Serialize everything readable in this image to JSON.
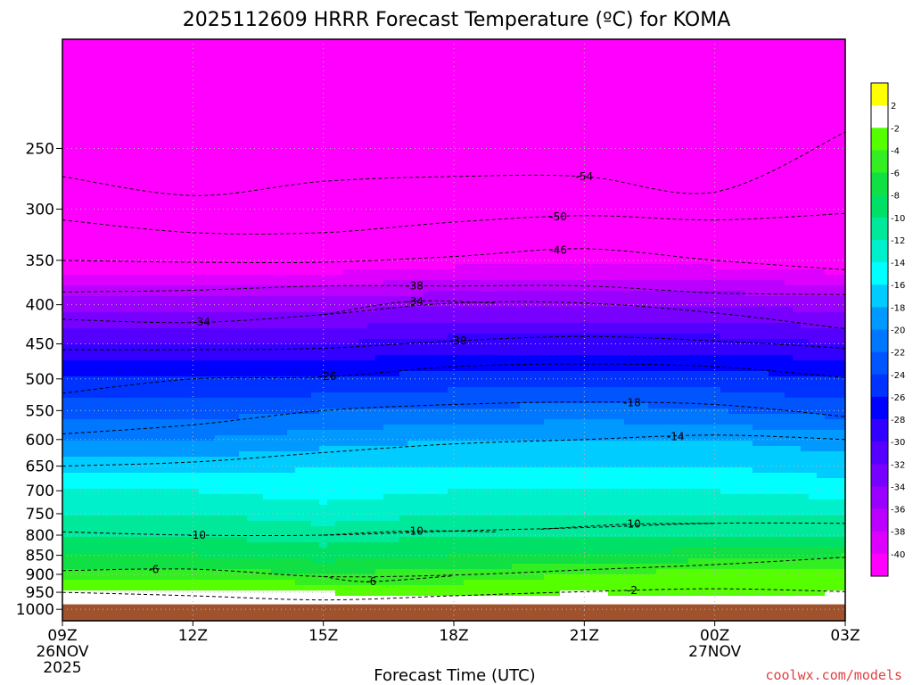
{
  "chart_data": {
    "type": "heatmap",
    "title": "2025112609 HRRR Forecast Temperature (ºC) for KOMA",
    "xlabel": "Forecast Time (UTC)",
    "credit": "coolwx.com/models",
    "x_ticks": [
      {
        "hour": 0,
        "label": "09Z",
        "sub1": "26NOV",
        "sub2": "2025"
      },
      {
        "hour": 3,
        "label": "12Z",
        "sub1": "",
        "sub2": ""
      },
      {
        "hour": 6,
        "label": "15Z",
        "sub1": "",
        "sub2": ""
      },
      {
        "hour": 9,
        "label": "18Z",
        "sub1": "",
        "sub2": ""
      },
      {
        "hour": 12,
        "label": "21Z",
        "sub1": "",
        "sub2": ""
      },
      {
        "hour": 15,
        "label": "00Z",
        "sub1": "27NOV",
        "sub2": ""
      },
      {
        "hour": 18,
        "label": "03Z",
        "sub1": "",
        "sub2": ""
      }
    ],
    "x_range_hours": [
      0,
      18
    ],
    "y_range_hpa": [
      1035,
      180
    ],
    "y_scale": "log",
    "y_ticks": [
      250,
      300,
      350,
      400,
      450,
      500,
      550,
      600,
      650,
      700,
      750,
      800,
      850,
      900,
      950,
      1000
    ],
    "grid": true,
    "colorbar": {
      "placement": "right",
      "levels": [
        {
          "label": "",
          "color": "#ffff00"
        },
        {
          "label": "2",
          "color": "#ffffff"
        },
        {
          "label": "-2",
          "color": "#55ff00"
        },
        {
          "label": "-4",
          "color": "#33ee22"
        },
        {
          "label": "-6",
          "color": "#11e044"
        },
        {
          "label": "-8",
          "color": "#00e066"
        },
        {
          "label": "-10",
          "color": "#00e899"
        },
        {
          "label": "-12",
          "color": "#00f0cc"
        },
        {
          "label": "-14",
          "color": "#00ffff"
        },
        {
          "label": "-16",
          "color": "#00ccff"
        },
        {
          "label": "-18",
          "color": "#0099ff"
        },
        {
          "label": "-20",
          "color": "#0077ff"
        },
        {
          "label": "-22",
          "color": "#0055ff"
        },
        {
          "label": "-24",
          "color": "#0033ff"
        },
        {
          "label": "-26",
          "color": "#0000ff"
        },
        {
          "label": "-28",
          "color": "#3300ff"
        },
        {
          "label": "-30",
          "color": "#5500ff"
        },
        {
          "label": "-32",
          "color": "#7700ff"
        },
        {
          "label": "-34",
          "color": "#9900ff"
        },
        {
          "label": "-36",
          "color": "#bb00ff"
        },
        {
          "label": "-38",
          "color": "#dd00ff"
        },
        {
          "label": "-40",
          "color": "#ff00ff"
        }
      ],
      "bottom_label": "-40"
    },
    "ground_color": "#a0522d",
    "temperature_profile": {
      "hours": [
        0,
        3,
        6,
        9,
        12,
        15,
        18
      ],
      "series": [
        {
          "p": 1000,
          "t": [
            2,
            1,
            0,
            2,
            2,
            2,
            1
          ]
        },
        {
          "p": 950,
          "t": [
            -1,
            -1,
            -2,
            -3,
            -2,
            -3,
            -2
          ]
        },
        {
          "p": 900,
          "t": [
            -5,
            -5,
            -6,
            -5,
            -4,
            -3,
            -3
          ]
        },
        {
          "p": 850,
          "t": [
            -8,
            -8,
            -9,
            -8,
            -8,
            -7,
            -6
          ]
        },
        {
          "p": 800,
          "t": [
            -10,
            -10,
            -11,
            -10,
            -10,
            -10,
            -10
          ]
        },
        {
          "p": 750,
          "t": [
            -12,
            -12,
            -13,
            -12,
            -12,
            -12,
            -12
          ]
        },
        {
          "p": 700,
          "t": [
            -14,
            -14,
            -15,
            -14,
            -14,
            -14,
            -15
          ]
        },
        {
          "p": 650,
          "t": [
            -17,
            -17,
            -16,
            -16,
            -16,
            -16,
            -17
          ]
        },
        {
          "p": 600,
          "t": [
            -20,
            -20,
            -19,
            -18,
            -18,
            -18,
            -19
          ]
        },
        {
          "p": 550,
          "t": [
            -23,
            -23,
            -22,
            -22,
            -21,
            -22,
            -23
          ]
        },
        {
          "p": 500,
          "t": [
            -26,
            -26,
            -26,
            -25,
            -25,
            -25,
            -26
          ]
        },
        {
          "p": 450,
          "t": [
            -30,
            -30,
            -30,
            -29,
            -29,
            -29,
            -30
          ]
        },
        {
          "p": 400,
          "t": [
            -35,
            -35,
            -35,
            -34,
            -34,
            -34,
            -35
          ]
        },
        {
          "p": 350,
          "t": [
            -42,
            -42,
            -42,
            -41,
            -41,
            -41,
            -42
          ]
        },
        {
          "p": 300,
          "t": [
            -50,
            -50,
            -50,
            -50,
            -50,
            -50,
            -50
          ]
        },
        {
          "p": 250,
          "t": [
            -55,
            -55,
            -56,
            -56,
            -56,
            -56,
            -55
          ]
        }
      ]
    },
    "contours": [
      {
        "label": "-54",
        "label_hour": 12.0,
        "points": [
          [
            0,
            272
          ],
          [
            3,
            288
          ],
          [
            6,
            276
          ],
          [
            9,
            272
          ],
          [
            12,
            272
          ],
          [
            15,
            285
          ],
          [
            18,
            238
          ]
        ]
      },
      {
        "label": "-50",
        "label_hour": 11.4,
        "points": [
          [
            0,
            310
          ],
          [
            3,
            322
          ],
          [
            6,
            322
          ],
          [
            9,
            312
          ],
          [
            12,
            306
          ],
          [
            15,
            310
          ],
          [
            18,
            304
          ]
        ]
      },
      {
        "label": "-46",
        "label_hour": 11.4,
        "points": [
          [
            0,
            350
          ],
          [
            3,
            352
          ],
          [
            6,
            352
          ],
          [
            9,
            346
          ],
          [
            12,
            338
          ],
          [
            15,
            350
          ],
          [
            18,
            360
          ]
        ]
      },
      {
        "label": "-38",
        "label_hour": 8.1,
        "points": [
          [
            0,
            385
          ],
          [
            3,
            383
          ],
          [
            6,
            378
          ],
          [
            9,
            378
          ],
          [
            12,
            378
          ],
          [
            15,
            386
          ],
          [
            18,
            388
          ]
        ]
      },
      {
        "label": "-34",
        "label_hour": 3.2,
        "points": [
          [
            0,
            418
          ],
          [
            3,
            422
          ],
          [
            6,
            412
          ],
          [
            9,
            398
          ],
          [
            12,
            398
          ],
          [
            15,
            410
          ],
          [
            18,
            430
          ]
        ]
      },
      {
        "label": "-34",
        "label_hour": 8.1,
        "points": [
          [
            6,
            412
          ],
          [
            8,
            396
          ],
          [
            10,
            398
          ]
        ]
      },
      {
        "label": "-30",
        "label_hour": 9.1,
        "points": [
          [
            0,
            458
          ],
          [
            3,
            458
          ],
          [
            6,
            456
          ],
          [
            9,
            446
          ],
          [
            12,
            440
          ],
          [
            15,
            446
          ],
          [
            18,
            456
          ]
        ]
      },
      {
        "label": "-26",
        "label_hour": 6.1,
        "points": [
          [
            0,
            522
          ],
          [
            3,
            500
          ],
          [
            6,
            497
          ],
          [
            9,
            482
          ],
          [
            12,
            478
          ],
          [
            15,
            482
          ],
          [
            18,
            498
          ]
        ]
      },
      {
        "label": "-18",
        "label_hour": 13.1,
        "points": [
          [
            0,
            590
          ],
          [
            3,
            574
          ],
          [
            6,
            550
          ],
          [
            9,
            540
          ],
          [
            12,
            536
          ],
          [
            15,
            540
          ],
          [
            18,
            560
          ]
        ]
      },
      {
        "label": "-14",
        "label_hour": 14.1,
        "points": [
          [
            0,
            650
          ],
          [
            3,
            642
          ],
          [
            6,
            624
          ],
          [
            9,
            608
          ],
          [
            12,
            600
          ],
          [
            15,
            592
          ],
          [
            18,
            600
          ]
        ]
      },
      {
        "label": "-10",
        "label_hour": 3.1,
        "points": [
          [
            0,
            792
          ],
          [
            3,
            800
          ],
          [
            6,
            800
          ],
          [
            9,
            790
          ],
          [
            12,
            782
          ],
          [
            15,
            772
          ],
          [
            18,
            772
          ]
        ]
      },
      {
        "label": "-10",
        "label_hour": 8.1,
        "points": [
          [
            6,
            800
          ],
          [
            8,
            790
          ],
          [
            10,
            792
          ]
        ]
      },
      {
        "label": "-10",
        "label_hour": 13.1,
        "points": [
          [
            11,
            786
          ],
          [
            13,
            774
          ],
          [
            15,
            772
          ]
        ]
      },
      {
        "label": "-6",
        "label_hour": 2.1,
        "points": [
          [
            0,
            890
          ],
          [
            3,
            886
          ],
          [
            6,
            906
          ],
          [
            9,
            902
          ],
          [
            12,
            888
          ],
          [
            15,
            874
          ],
          [
            18,
            855
          ]
        ]
      },
      {
        "label": "-6",
        "label_hour": 7.1,
        "points": [
          [
            6,
            906
          ],
          [
            7,
            920
          ],
          [
            9,
            904
          ]
        ]
      },
      {
        "label": "-2",
        "label_hour": 13.1,
        "points": [
          [
            0,
            950
          ],
          [
            3,
            960
          ],
          [
            6,
            972
          ],
          [
            9,
            960
          ],
          [
            12,
            948
          ],
          [
            15,
            940
          ],
          [
            18,
            948
          ]
        ]
      }
    ]
  }
}
